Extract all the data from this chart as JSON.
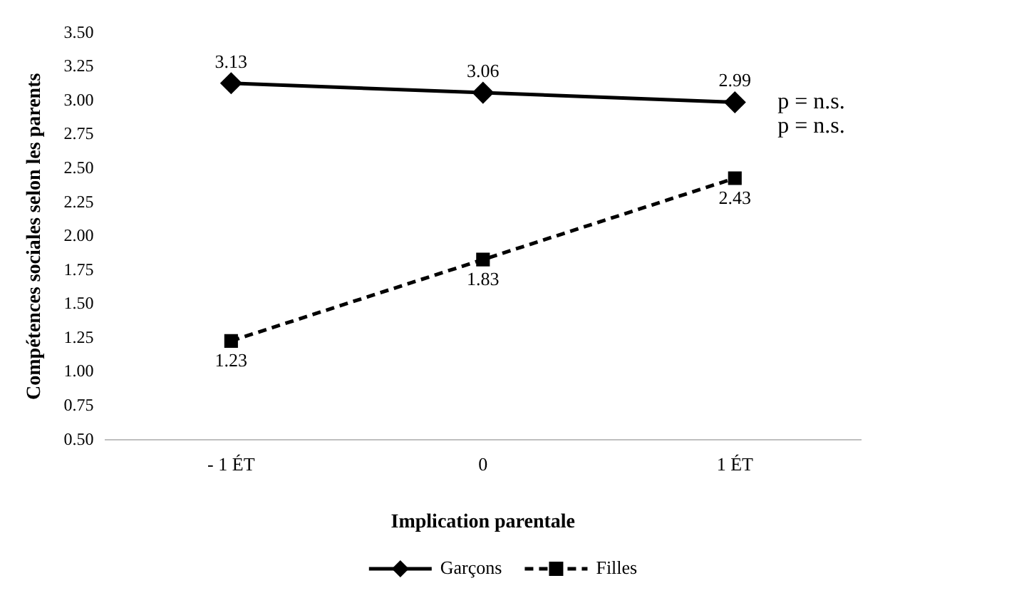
{
  "chart_data": {
    "type": "line",
    "xlabel": "Implication parentale",
    "ylabel": "Compétences sociales selon les parents",
    "categories": [
      "- 1 ÉT",
      "0",
      "1 ÉT"
    ],
    "series": [
      {
        "name": "Garçons",
        "color": "#000000",
        "values": [
          3.13,
          3.06,
          2.99
        ],
        "marker": "diamond",
        "line_style": "solid"
      },
      {
        "name": "Filles",
        "color": "#000000",
        "values": [
          1.23,
          1.83,
          2.43
        ],
        "marker": "square",
        "line_style": "dashed"
      }
    ],
    "ylim": [
      0.5,
      3.5
    ],
    "yticks": [
      {
        "value": 0.5,
        "label": "0.50"
      },
      {
        "value": 0.75,
        "label": "0.75"
      },
      {
        "value": 1,
        "label": "1.00"
      },
      {
        "value": 1.25,
        "label": "1.25"
      },
      {
        "value": 1.5,
        "label": "1.50"
      },
      {
        "value": 1.75,
        "label": "1.75"
      },
      {
        "value": 2,
        "label": "2.00"
      },
      {
        "value": 2.25,
        "label": "2.25"
      },
      {
        "value": 2.5,
        "label": "2.50"
      },
      {
        "value": 2.75,
        "label": "2.75"
      },
      {
        "value": 3,
        "label": "3.00"
      },
      {
        "value": 3.25,
        "label": "3.25"
      },
      {
        "value": 3.5,
        "label": "3.50"
      }
    ],
    "data_labels": true,
    "grid": false,
    "legend": "bottom",
    "annotations": [
      "p = n.s.",
      "p = n.s."
    ]
  }
}
